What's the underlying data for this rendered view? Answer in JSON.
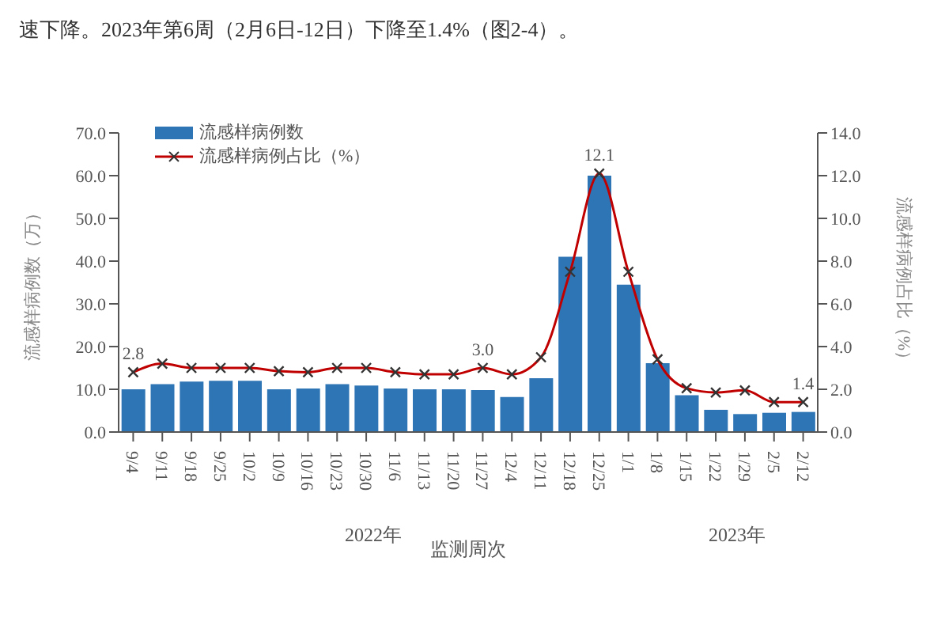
{
  "chart_data": {
    "type": "bar",
    "annotations": [
      "速下降。2023年第6周（2月6日-12日）下降至1.4%（图2-4）。",
      "2022年",
      "2023年"
    ],
    "xlabel": "监测周次",
    "ylabel": "流感样病例数（万）",
    "y2label": "流感样病例占比（%）",
    "categories": [
      "9/4",
      "9/11",
      "9/18",
      "9/25",
      "10/2",
      "10/9",
      "10/16",
      "10/23",
      "10/30",
      "11/6",
      "11/13",
      "11/20",
      "11/27",
      "12/4",
      "12/11",
      "12/18",
      "12/25",
      "1/1",
      "1/8",
      "1/15",
      "1/22",
      "1/29",
      "2/5",
      "2/12"
    ],
    "series": [
      {
        "name": "流感样病例数",
        "color": "#2e75b6",
        "values": [
          10.0,
          11.2,
          11.8,
          12.0,
          12.0,
          10.0,
          10.2,
          11.2,
          10.9,
          10.2,
          10.0,
          10.0,
          9.8,
          8.2,
          12.6,
          41.0,
          60.0,
          34.5,
          16.1,
          8.6,
          5.2,
          4.2,
          4.5,
          4.7
        ]
      },
      {
        "name": "流感样病例占比（%）",
        "type": "line",
        "axis": "y2",
        "color": "#c00000",
        "marker": "cross",
        "values": [
          2.8,
          3.2,
          3.0,
          3.0,
          3.0,
          2.85,
          2.8,
          3.0,
          3.0,
          2.8,
          2.7,
          2.7,
          3.0,
          2.7,
          3.5,
          7.5,
          12.1,
          7.5,
          3.4,
          2.05,
          1.85,
          1.95,
          1.4,
          1.4
        ],
        "value_labels": [
          "2.8",
          null,
          null,
          null,
          null,
          null,
          null,
          null,
          null,
          null,
          null,
          null,
          "3.0",
          null,
          null,
          null,
          "12.1",
          null,
          null,
          null,
          null,
          null,
          null,
          "1.4"
        ]
      }
    ],
    "ylim": [
      0,
      70
    ],
    "yticks": [
      {
        "value": 0,
        "label": "0.0"
      },
      {
        "value": 10,
        "label": "10.0"
      },
      {
        "value": 20,
        "label": "20.0"
      },
      {
        "value": 30,
        "label": "30.0"
      },
      {
        "value": 40,
        "label": "40.0"
      },
      {
        "value": 50,
        "label": "50.0"
      },
      {
        "value": 60,
        "label": "60.0"
      },
      {
        "value": 70,
        "label": "70.0"
      }
    ],
    "y2lim": [
      0,
      14
    ],
    "y2ticks": [
      {
        "value": 0,
        "label": "0.0"
      },
      {
        "value": 2,
        "label": "2.0"
      },
      {
        "value": 4,
        "label": "4.0"
      },
      {
        "value": 6,
        "label": "6.0"
      },
      {
        "value": 8,
        "label": "8.0"
      },
      {
        "value": 10,
        "label": "10.0"
      },
      {
        "value": 12,
        "label": "12.0"
      },
      {
        "value": 14,
        "label": "14.0"
      }
    ],
    "legend": "top left"
  }
}
